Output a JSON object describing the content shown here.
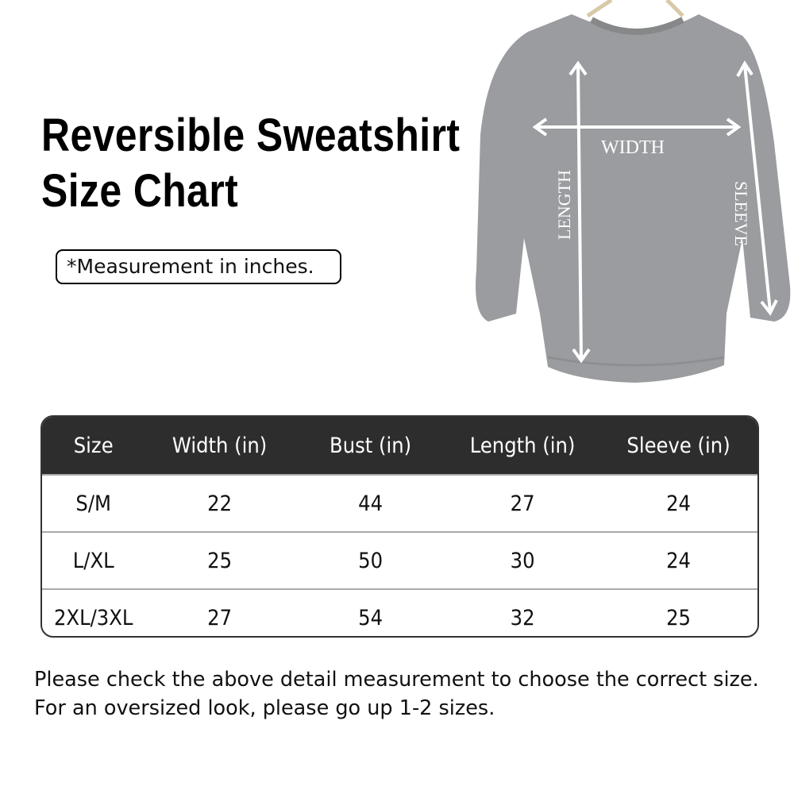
{
  "title_line1": "Reversible Sweatshirt",
  "title_line2": "Size Chart",
  "note": "*Measurement in inches.",
  "diagram": {
    "width_label": "WIDTH",
    "length_label": "LENGTH",
    "sleeve_label": "SLEEVE",
    "garment_color": "#9a9c9f"
  },
  "table": {
    "headers": [
      "Size",
      "Width (in)",
      "Bust (in)",
      "Length (in)",
      "Sleeve (in)"
    ],
    "rows": [
      [
        "S/M",
        "22",
        "44",
        "27",
        "24"
      ],
      [
        "L/XL",
        "25",
        "50",
        "30",
        "24"
      ],
      [
        "2XL/3XL",
        "27",
        "54",
        "32",
        "25"
      ]
    ]
  },
  "footer": {
    "line1": "Please check the above detail measurement to choose the correct size.",
    "line2": "For an oversized look, please go up 1-2 sizes."
  }
}
